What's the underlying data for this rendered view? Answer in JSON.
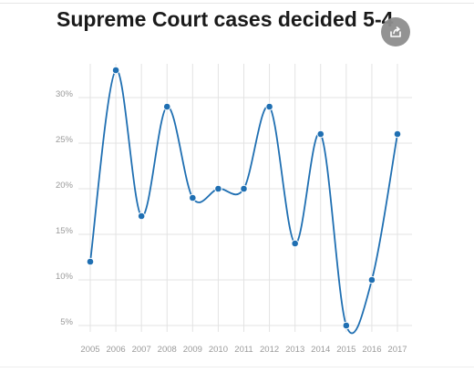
{
  "title": "Supreme Court cases decided 5-4",
  "share_icon": "share-icon",
  "colors": {
    "line": "#1f6fb2",
    "point": "#1f6fb2",
    "grid": "#e3e3e3",
    "tick": "#9a9a9a"
  },
  "chart_data": {
    "type": "line",
    "title": "Supreme Court cases decided 5-4",
    "xlabel": "",
    "ylabel": "",
    "x": [
      "2005",
      "2006",
      "2007",
      "2008",
      "2009",
      "2010",
      "2011",
      "2012",
      "2013",
      "2014",
      "2015",
      "2016",
      "2017"
    ],
    "series": [
      {
        "values": [
          12,
          33,
          17,
          29,
          19,
          20,
          20,
          29,
          14,
          26,
          5,
          10,
          26
        ]
      }
    ],
    "yticks": [
      "5%",
      "10%",
      "15%",
      "20%",
      "25%",
      "30%"
    ],
    "ylim": [
      3,
      34
    ],
    "smooth": true,
    "grid": true,
    "legend": "none"
  }
}
